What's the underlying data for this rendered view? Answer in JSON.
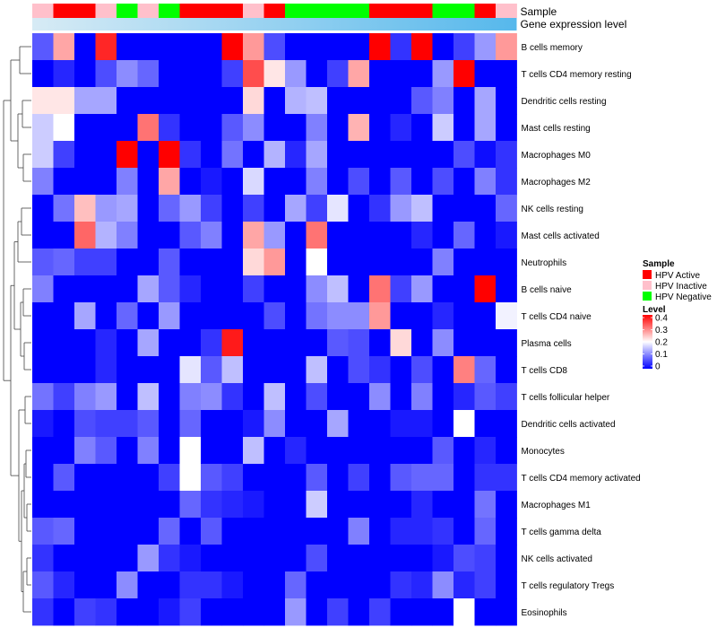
{
  "chart_data": {
    "type": "heatmap",
    "title": "",
    "annotation_labels": [
      "Sample",
      "Gene expression level"
    ],
    "column_annotation": {
      "sample_groups": [
        "HPV Inactive",
        "HPV Active",
        "HPV Active",
        "HPV Inactive",
        "HPV Negative",
        "HPV Inactive",
        "HPV Negative",
        "HPV Active",
        "HPV Active",
        "HPV Active",
        "HPV Inactive",
        "HPV Active",
        "HPV Negative",
        "HPV Negative",
        "HPV Negative",
        "HPV Negative",
        "HPV Active",
        "HPV Active",
        "HPV Active",
        "HPV Negative",
        "HPV Negative",
        "HPV Active",
        "HPV Inactive"
      ],
      "gene_expression_level": [
        0.0,
        0.05,
        0.09,
        0.14,
        0.18,
        0.23,
        0.27,
        0.32,
        0.36,
        0.41,
        0.45,
        0.5,
        0.55,
        0.59,
        0.64,
        0.68,
        0.73,
        0.77,
        0.82,
        0.86,
        0.91,
        0.95,
        1.0
      ]
    },
    "rows": [
      "B cells memory",
      "T cells CD4 memory resting",
      "Dendritic cells resting",
      "Mast cells resting",
      "Macrophages M0",
      "Macrophages M2",
      "NK cells resting",
      "Mast cells activated",
      "Neutrophils",
      "B cells naive",
      "T cells CD4 naive",
      "Plasma cells",
      "T cells CD8",
      "T cells follicular helper",
      "Dendritic cells activated",
      "Monocytes",
      "T cells CD4 memory activated",
      "Macrophages M1",
      "T cells gamma delta",
      "NK cells activated",
      "T cells regulatory  Tregs",
      "Eosinophils"
    ],
    "values": [
      [
        0.07,
        0.27,
        0.0,
        0.37,
        0.0,
        0.0,
        0.0,
        0.0,
        0.0,
        0.42,
        0.28,
        0.06,
        0.0,
        0.0,
        0.0,
        0.0,
        0.43,
        0.04,
        0.41,
        0.0,
        0.05,
        0.12,
        0.28
      ],
      [
        0.0,
        0.03,
        0.0,
        0.06,
        0.11,
        0.08,
        0.0,
        0.0,
        0.0,
        0.05,
        0.34,
        0.22,
        0.12,
        0.0,
        0.05,
        0.27,
        0.0,
        0.0,
        0.0,
        0.12,
        0.43,
        0.0,
        0.0
      ],
      [
        0.22,
        0.22,
        0.13,
        0.13,
        0.0,
        0.0,
        0.0,
        0.0,
        0.0,
        0.0,
        0.23,
        0.0,
        0.14,
        0.15,
        0.0,
        0.0,
        0.0,
        0.0,
        0.07,
        0.1,
        0.0,
        0.13,
        0.0
      ],
      [
        0.16,
        0.2,
        0.0,
        0.0,
        0.0,
        0.31,
        0.04,
        0.0,
        0.0,
        0.07,
        0.11,
        0.0,
        0.0,
        0.1,
        0.0,
        0.26,
        0.0,
        0.03,
        0.0,
        0.16,
        0.0,
        0.13,
        0.0
      ],
      [
        0.16,
        0.05,
        0.0,
        0.0,
        0.42,
        0.0,
        0.41,
        0.04,
        0.0,
        0.09,
        0.0,
        0.14,
        0.03,
        0.13,
        0.0,
        0.0,
        0.0,
        0.0,
        0.0,
        0.0,
        0.06,
        0.01,
        0.04
      ],
      [
        0.1,
        0.0,
        0.0,
        0.0,
        0.1,
        0.0,
        0.27,
        0.0,
        0.02,
        0.0,
        0.17,
        0.0,
        0.0,
        0.1,
        0.0,
        0.06,
        0.0,
        0.07,
        0.0,
        0.06,
        0.0,
        0.1,
        0.04
      ],
      [
        0.0,
        0.09,
        0.25,
        0.12,
        0.13,
        0.0,
        0.08,
        0.12,
        0.05,
        0.0,
        0.05,
        0.0,
        0.13,
        0.05,
        0.18,
        0.0,
        0.04,
        0.12,
        0.15,
        0.0,
        0.0,
        0.0,
        0.08
      ],
      [
        0.0,
        0.0,
        0.32,
        0.14,
        0.1,
        0.0,
        0.0,
        0.07,
        0.1,
        0.0,
        0.27,
        0.12,
        0.0,
        0.31,
        0.0,
        0.0,
        0.0,
        0.0,
        0.03,
        0.0,
        0.08,
        0.0,
        0.02
      ],
      [
        0.07,
        0.08,
        0.05,
        0.05,
        0.0,
        0.0,
        0.07,
        0.0,
        0.0,
        0.0,
        0.23,
        0.28,
        0.0,
        0.2,
        0.0,
        0.0,
        0.0,
        0.0,
        0.0,
        0.1,
        0.0,
        0.0,
        0.0
      ],
      [
        0.1,
        0.0,
        0.0,
        0.0,
        0.0,
        0.13,
        0.07,
        0.03,
        0.0,
        0.0,
        0.05,
        0.0,
        0.0,
        0.11,
        0.15,
        0.0,
        0.31,
        0.05,
        0.12,
        0.0,
        0.0,
        0.4,
        0.0
      ],
      [
        0.0,
        0.0,
        0.13,
        0.0,
        0.08,
        0.0,
        0.12,
        0.0,
        0.0,
        0.0,
        0.0,
        0.06,
        0.0,
        0.09,
        0.11,
        0.11,
        0.28,
        0.0,
        0.0,
        0.03,
        0.0,
        0.0,
        0.19
      ],
      [
        0.0,
        0.0,
        0.0,
        0.03,
        0.0,
        0.13,
        0.0,
        0.0,
        0.04,
        0.38,
        0.0,
        0.0,
        0.0,
        0.0,
        0.07,
        0.06,
        0.0,
        0.23,
        0.0,
        0.11,
        0.0,
        0.0,
        0.0
      ],
      [
        0.0,
        0.0,
        0.0,
        0.03,
        0.0,
        0.0,
        0.0,
        0.18,
        0.07,
        0.15,
        0.0,
        0.0,
        0.0,
        0.15,
        0.0,
        0.06,
        0.04,
        0.0,
        0.06,
        0.0,
        0.3,
        0.08,
        0.0
      ],
      [
        0.09,
        0.05,
        0.1,
        0.12,
        0.0,
        0.15,
        0.0,
        0.1,
        0.11,
        0.04,
        0.0,
        0.15,
        0.0,
        0.06,
        0.0,
        0.0,
        0.11,
        0.0,
        0.1,
        0.0,
        0.03,
        0.07,
        0.05
      ],
      [
        0.02,
        0.0,
        0.06,
        0.05,
        0.05,
        0.07,
        0.0,
        0.08,
        0.0,
        0.0,
        0.02,
        0.11,
        0.0,
        0.0,
        0.13,
        0.0,
        0.0,
        0.02,
        0.02,
        0.0,
        0.2,
        0.0,
        0.0
      ],
      [
        0.0,
        0.0,
        0.1,
        0.07,
        0.0,
        0.1,
        0.0,
        0.2,
        0.0,
        0.0,
        0.15,
        0.0,
        0.03,
        0.0,
        0.0,
        0.0,
        0.0,
        0.0,
        0.0,
        0.07,
        0.0,
        0.03,
        0.0
      ],
      [
        0.0,
        0.07,
        0.0,
        0.0,
        0.0,
        0.0,
        0.05,
        0.2,
        0.07,
        0.05,
        0.0,
        0.0,
        0.0,
        0.07,
        0.0,
        0.05,
        0.0,
        0.07,
        0.08,
        0.08,
        0.0,
        0.04,
        0.04
      ],
      [
        0.0,
        0.0,
        0.0,
        0.0,
        0.0,
        0.0,
        0.0,
        0.08,
        0.04,
        0.03,
        0.02,
        0.0,
        0.0,
        0.16,
        0.0,
        0.0,
        0.0,
        0.0,
        0.03,
        0.0,
        0.0,
        0.09,
        0.0
      ],
      [
        0.07,
        0.08,
        0.0,
        0.0,
        0.0,
        0.0,
        0.08,
        0.0,
        0.07,
        0.0,
        0.0,
        0.0,
        0.0,
        0.0,
        0.0,
        0.1,
        0.0,
        0.03,
        0.03,
        0.04,
        0.0,
        0.08,
        0.0
      ],
      [
        0.04,
        0.0,
        0.0,
        0.0,
        0.0,
        0.12,
        0.04,
        0.02,
        0.0,
        0.0,
        0.0,
        0.0,
        0.0,
        0.06,
        0.0,
        0.0,
        0.0,
        0.0,
        0.0,
        0.02,
        0.06,
        0.05,
        0.0
      ],
      [
        0.07,
        0.03,
        0.0,
        0.0,
        0.11,
        0.0,
        0.0,
        0.04,
        0.04,
        0.02,
        0.0,
        0.0,
        0.08,
        0.0,
        0.0,
        0.0,
        0.0,
        0.04,
        0.03,
        0.11,
        0.03,
        0.05,
        0.0
      ],
      [
        0.04,
        0.0,
        0.05,
        0.04,
        0.0,
        0.0,
        0.02,
        0.05,
        0.0,
        0.0,
        0.0,
        0.0,
        0.12,
        0.0,
        0.05,
        0.0,
        0.05,
        0.0,
        0.0,
        0.0,
        0.2,
        0.0,
        0.0
      ]
    ],
    "color_scale": {
      "title": "Level",
      "min": 0,
      "max": 0.4,
      "ticks": [
        "0.4",
        "0.3",
        "0.2",
        "0.1",
        "0"
      ],
      "low_color": "#0000ff",
      "mid_color": "#ffffff",
      "high_color": "#ff0000"
    },
    "legend": {
      "title": "Sample",
      "items": [
        {
          "label": "HPV Active",
          "color": "#ff0000"
        },
        {
          "label": "HPV Inactive",
          "color": "#ffc0cb"
        },
        {
          "label": "HPV Negative",
          "color": "#00ff00"
        }
      ]
    },
    "expression_colors": {
      "low": "#d7ebf5",
      "high": "#56b8ec"
    },
    "row_dendrogram": "left"
  }
}
